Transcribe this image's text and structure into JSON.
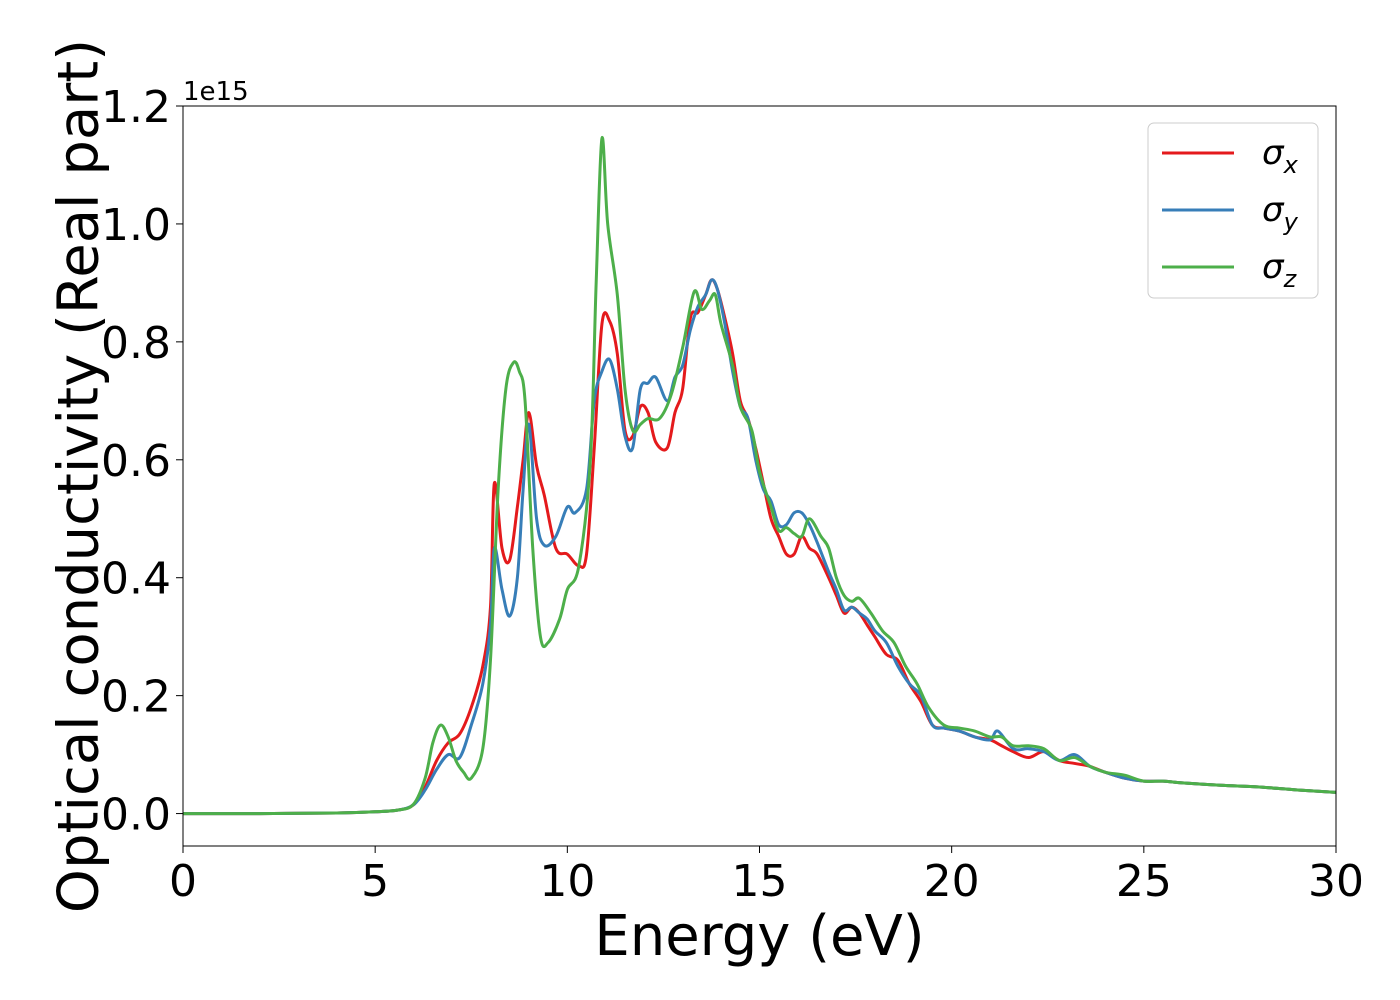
{
  "chart_data": {
    "type": "line",
    "title": "",
    "xlabel": "Energy (eV)",
    "ylabel": "Optical conductivity (Real part)",
    "y_offset_label": "1e15",
    "xlim": [
      0,
      30
    ],
    "ylim": [
      -0.055,
      1.2
    ],
    "xticks": [
      "0",
      "5",
      "10",
      "15",
      "20",
      "25",
      "30"
    ],
    "yticks": [
      "0.0",
      "0.2",
      "0.4",
      "0.6",
      "0.8",
      "1.0",
      "1.2"
    ],
    "grid": false,
    "legend_position": "top-right",
    "series": [
      {
        "name": "σx",
        "name_base": "σ",
        "name_sub": "x",
        "color": "#e41a1c",
        "x": [
          0,
          2,
          4,
          5,
          5.6,
          6.0,
          6.3,
          6.6,
          6.9,
          7.2,
          7.5,
          7.8,
          8.0,
          8.1,
          8.3,
          8.5,
          8.7,
          8.85,
          9.0,
          9.2,
          9.4,
          9.7,
          10.0,
          10.3,
          10.5,
          10.7,
          10.9,
          11.1,
          11.3,
          11.5,
          11.7,
          11.9,
          12.1,
          12.3,
          12.6,
          12.8,
          13.0,
          13.2,
          13.4,
          13.6,
          13.75,
          13.9,
          14.1,
          14.3,
          14.5,
          14.7,
          14.9,
          15.1,
          15.3,
          15.5,
          15.7,
          15.9,
          16.1,
          16.3,
          16.5,
          16.8,
          17.0,
          17.2,
          17.4,
          17.6,
          17.8,
          18.0,
          18.3,
          18.6,
          18.9,
          19.2,
          19.5,
          19.8,
          20.2,
          20.6,
          21.0,
          21.3,
          21.6,
          22.0,
          22.4,
          22.8,
          23.2,
          23.6,
          24.0,
          24.5,
          25.0,
          25.5,
          26.0,
          27.0,
          28.0,
          29.0,
          30.0
        ],
        "y": [
          0.0,
          0.0,
          0.001,
          0.003,
          0.006,
          0.015,
          0.045,
          0.09,
          0.12,
          0.135,
          0.18,
          0.25,
          0.35,
          0.56,
          0.45,
          0.43,
          0.52,
          0.6,
          0.68,
          0.59,
          0.54,
          0.45,
          0.44,
          0.42,
          0.44,
          0.62,
          0.83,
          0.835,
          0.78,
          0.65,
          0.64,
          0.69,
          0.68,
          0.63,
          0.62,
          0.68,
          0.72,
          0.84,
          0.85,
          0.88,
          0.905,
          0.89,
          0.84,
          0.78,
          0.7,
          0.67,
          0.62,
          0.56,
          0.5,
          0.47,
          0.44,
          0.44,
          0.47,
          0.45,
          0.44,
          0.4,
          0.37,
          0.34,
          0.35,
          0.34,
          0.32,
          0.3,
          0.27,
          0.26,
          0.22,
          0.19,
          0.15,
          0.145,
          0.14,
          0.13,
          0.125,
          0.115,
          0.105,
          0.095,
          0.105,
          0.09,
          0.085,
          0.08,
          0.07,
          0.06,
          0.055,
          0.055,
          0.052,
          0.048,
          0.045,
          0.04,
          0.036
        ]
      },
      {
        "name": "σy",
        "name_base": "σ",
        "name_sub": "y",
        "color": "#377eb8",
        "x": [
          0,
          2,
          4,
          5,
          5.6,
          6.0,
          6.3,
          6.6,
          6.9,
          7.2,
          7.5,
          7.8,
          8.0,
          8.1,
          8.3,
          8.5,
          8.7,
          8.85,
          9.0,
          9.2,
          9.4,
          9.7,
          10.0,
          10.2,
          10.5,
          10.7,
          10.9,
          11.1,
          11.3,
          11.5,
          11.7,
          11.9,
          12.1,
          12.3,
          12.6,
          12.8,
          13.0,
          13.2,
          13.4,
          13.6,
          13.75,
          13.9,
          14.1,
          14.3,
          14.5,
          14.7,
          14.9,
          15.1,
          15.3,
          15.5,
          15.7,
          15.9,
          16.1,
          16.3,
          16.5,
          16.8,
          17.0,
          17.2,
          17.4,
          17.6,
          17.8,
          18.0,
          18.3,
          18.6,
          18.9,
          19.2,
          19.5,
          19.8,
          20.2,
          20.6,
          21.0,
          21.2,
          21.6,
          22.0,
          22.4,
          22.8,
          23.2,
          23.6,
          24.0,
          24.5,
          25.0,
          25.5,
          26.0,
          27.0,
          28.0,
          29.0,
          30.0
        ],
        "y": [
          0.0,
          0.0,
          0.001,
          0.003,
          0.006,
          0.015,
          0.04,
          0.075,
          0.1,
          0.095,
          0.15,
          0.22,
          0.32,
          0.45,
          0.38,
          0.335,
          0.4,
          0.55,
          0.66,
          0.5,
          0.455,
          0.47,
          0.52,
          0.51,
          0.55,
          0.7,
          0.75,
          0.77,
          0.72,
          0.64,
          0.62,
          0.72,
          0.73,
          0.74,
          0.7,
          0.74,
          0.76,
          0.82,
          0.86,
          0.88,
          0.905,
          0.89,
          0.83,
          0.75,
          0.69,
          0.67,
          0.6,
          0.55,
          0.53,
          0.49,
          0.49,
          0.51,
          0.51,
          0.49,
          0.46,
          0.41,
          0.38,
          0.345,
          0.35,
          0.34,
          0.33,
          0.31,
          0.29,
          0.25,
          0.22,
          0.2,
          0.15,
          0.145,
          0.14,
          0.13,
          0.125,
          0.14,
          0.11,
          0.11,
          0.105,
          0.09,
          0.1,
          0.08,
          0.07,
          0.06,
          0.055,
          0.055,
          0.052,
          0.048,
          0.045,
          0.04,
          0.036
        ]
      },
      {
        "name": "σz",
        "name_base": "σ",
        "name_sub": "z",
        "color": "#4daf4a",
        "x": [
          0,
          2,
          4,
          5,
          5.6,
          6.0,
          6.3,
          6.5,
          6.7,
          6.9,
          7.1,
          7.3,
          7.5,
          7.8,
          8.0,
          8.2,
          8.4,
          8.6,
          8.75,
          8.9,
          9.1,
          9.3,
          9.5,
          9.8,
          10.0,
          10.3,
          10.6,
          10.75,
          10.9,
          11.05,
          11.3,
          11.5,
          11.7,
          11.9,
          12.1,
          12.4,
          12.7,
          13.0,
          13.3,
          13.5,
          13.7,
          13.85,
          14.0,
          14.3,
          14.5,
          14.8,
          15.0,
          15.3,
          15.5,
          15.7,
          15.9,
          16.1,
          16.3,
          16.6,
          16.8,
          17.0,
          17.2,
          17.4,
          17.6,
          17.9,
          18.2,
          18.5,
          18.8,
          19.1,
          19.4,
          19.8,
          20.2,
          20.6,
          21.0,
          21.3,
          21.6,
          22.0,
          22.4,
          22.8,
          23.2,
          23.6,
          24.0,
          24.5,
          25.0,
          25.5,
          26.0,
          27.0,
          28.0,
          29.0,
          30.0
        ],
        "y": [
          0.0,
          0.0,
          0.001,
          0.003,
          0.006,
          0.016,
          0.06,
          0.12,
          0.15,
          0.13,
          0.09,
          0.07,
          0.06,
          0.11,
          0.26,
          0.55,
          0.72,
          0.765,
          0.75,
          0.7,
          0.45,
          0.3,
          0.29,
          0.33,
          0.38,
          0.42,
          0.6,
          0.9,
          1.145,
          1.0,
          0.88,
          0.72,
          0.65,
          0.66,
          0.67,
          0.67,
          0.71,
          0.79,
          0.885,
          0.855,
          0.87,
          0.88,
          0.83,
          0.76,
          0.69,
          0.65,
          0.58,
          0.52,
          0.48,
          0.485,
          0.475,
          0.47,
          0.5,
          0.47,
          0.45,
          0.4,
          0.37,
          0.36,
          0.365,
          0.34,
          0.31,
          0.29,
          0.25,
          0.22,
          0.18,
          0.15,
          0.145,
          0.14,
          0.13,
          0.13,
          0.115,
          0.115,
          0.11,
          0.09,
          0.095,
          0.08,
          0.07,
          0.065,
          0.055,
          0.055,
          0.052,
          0.048,
          0.045,
          0.04,
          0.036
        ]
      }
    ]
  }
}
